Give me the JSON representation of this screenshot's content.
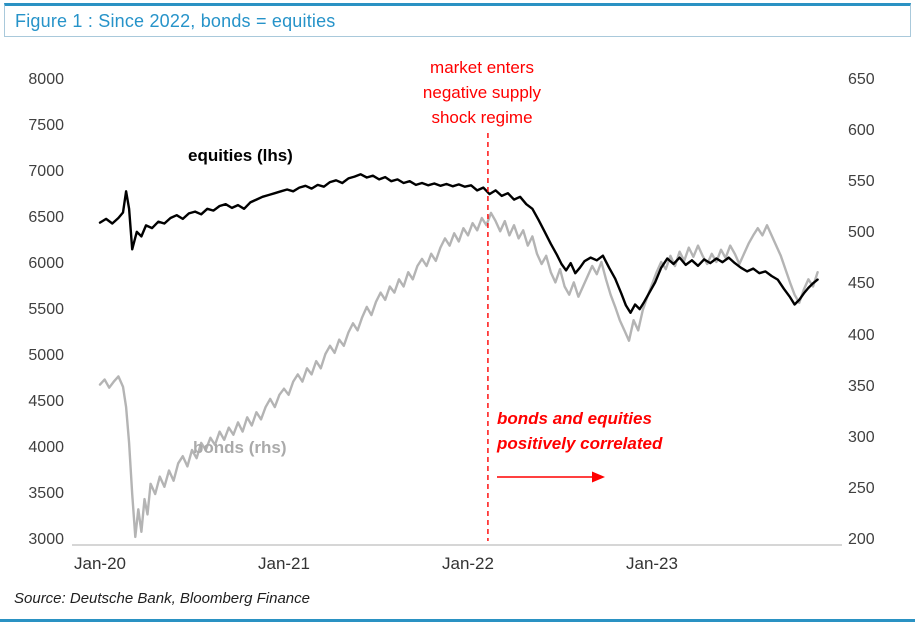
{
  "figure": {
    "title": "Figure 1 : Since 2022, bonds = equities",
    "source": "Source: Deutsche Bank, Bloomberg Finance"
  },
  "annotations": {
    "supply_shock": "market enters\nnegative supply\nshock regime",
    "correlation": "bonds and equities\npositively correlated",
    "equities_label": "equities (lhs)",
    "bonds_label": "bonds (rhs)"
  },
  "colors": {
    "title_blue": "#2693C9",
    "rule_blue": "#2A92C3",
    "box_border": "#A9C9DB",
    "equities_line": "#000000",
    "bonds_line": "#B4B4B4",
    "annotation_red": "#FF0000",
    "axis_text": "#404040",
    "baseline_gray": "#C9C9C9"
  },
  "chart_data": {
    "type": "line",
    "title": "Figure 1 : Since 2022, bonds = equities",
    "x_unit": "months since Jan-2020",
    "x_ticks": [
      {
        "t": 0,
        "label": "Jan-20"
      },
      {
        "t": 12,
        "label": "Jan-21"
      },
      {
        "t": 24,
        "label": "Jan-22"
      },
      {
        "t": 36,
        "label": "Jan-23"
      }
    ],
    "left_axis": {
      "name": "equities (lhs)",
      "min": 3000,
      "max": 8000,
      "ticks": [
        8000,
        7500,
        7000,
        6500,
        6000,
        5500,
        5000,
        4500,
        4000,
        3500,
        3000
      ]
    },
    "right_axis": {
      "name": "bonds (rhs)",
      "min": 200,
      "max": 650,
      "ticks": [
        650,
        600,
        550,
        500,
        450,
        400,
        350,
        300,
        250,
        200
      ]
    },
    "event_line": {
      "t": 25.3,
      "color": "#FF0000",
      "style": "dashed",
      "label": "market enters negative supply shock regime"
    },
    "legend_position": "inline-labels",
    "grid": false,
    "series": [
      {
        "id": "bonds",
        "name": "bonds (rhs)",
        "axis": "right",
        "color": "#B4B4B4",
        "points": [
          [
            0,
            352
          ],
          [
            0.3,
            357
          ],
          [
            0.6,
            349
          ],
          [
            0.9,
            355
          ],
          [
            1.2,
            360
          ],
          [
            1.5,
            350
          ],
          [
            1.7,
            330
          ],
          [
            1.9,
            295
          ],
          [
            2.1,
            245
          ],
          [
            2.3,
            203
          ],
          [
            2.5,
            230
          ],
          [
            2.7,
            208
          ],
          [
            2.9,
            240
          ],
          [
            3.1,
            225
          ],
          [
            3.3,
            255
          ],
          [
            3.6,
            245
          ],
          [
            3.9,
            262
          ],
          [
            4.2,
            252
          ],
          [
            4.5,
            268
          ],
          [
            4.8,
            258
          ],
          [
            5.1,
            275
          ],
          [
            5.4,
            282
          ],
          [
            5.7,
            272
          ],
          [
            6,
            288
          ],
          [
            6.3,
            280
          ],
          [
            6.6,
            295
          ],
          [
            6.9,
            288
          ],
          [
            7.2,
            300
          ],
          [
            7.5,
            293
          ],
          [
            7.8,
            306
          ],
          [
            8.1,
            298
          ],
          [
            8.4,
            310
          ],
          [
            8.7,
            303
          ],
          [
            9,
            315
          ],
          [
            9.3,
            306
          ],
          [
            9.6,
            320
          ],
          [
            9.9,
            312
          ],
          [
            10.2,
            325
          ],
          [
            10.5,
            318
          ],
          [
            10.8,
            330
          ],
          [
            11.1,
            338
          ],
          [
            11.4,
            330
          ],
          [
            11.7,
            342
          ],
          [
            12,
            348
          ],
          [
            12.3,
            342
          ],
          [
            12.6,
            355
          ],
          [
            12.9,
            362
          ],
          [
            13.2,
            355
          ],
          [
            13.5,
            368
          ],
          [
            13.8,
            362
          ],
          [
            14.1,
            375
          ],
          [
            14.4,
            368
          ],
          [
            14.7,
            382
          ],
          [
            15,
            390
          ],
          [
            15.3,
            383
          ],
          [
            15.6,
            396
          ],
          [
            15.9,
            390
          ],
          [
            16.2,
            403
          ],
          [
            16.5,
            412
          ],
          [
            16.8,
            405
          ],
          [
            17.1,
            418
          ],
          [
            17.4,
            428
          ],
          [
            17.7,
            420
          ],
          [
            18,
            433
          ],
          [
            18.3,
            442
          ],
          [
            18.6,
            435
          ],
          [
            18.9,
            448
          ],
          [
            19.2,
            442
          ],
          [
            19.5,
            455
          ],
          [
            19.8,
            448
          ],
          [
            20.1,
            462
          ],
          [
            20.4,
            455
          ],
          [
            20.7,
            468
          ],
          [
            21,
            475
          ],
          [
            21.3,
            468
          ],
          [
            21.6,
            480
          ],
          [
            21.9,
            473
          ],
          [
            22.2,
            486
          ],
          [
            22.5,
            495
          ],
          [
            22.8,
            488
          ],
          [
            23.1,
            500
          ],
          [
            23.4,
            492
          ],
          [
            23.7,
            505
          ],
          [
            24,
            498
          ],
          [
            24.3,
            510
          ],
          [
            24.6,
            503
          ],
          [
            24.9,
            515
          ],
          [
            25.2,
            508
          ],
          [
            25.5,
            520
          ],
          [
            25.8,
            512
          ],
          [
            26.1,
            502
          ],
          [
            26.4,
            512
          ],
          [
            26.7,
            498
          ],
          [
            27,
            508
          ],
          [
            27.3,
            495
          ],
          [
            27.6,
            503
          ],
          [
            27.9,
            488
          ],
          [
            28.2,
            497
          ],
          [
            28.5,
            480
          ],
          [
            28.8,
            470
          ],
          [
            29.1,
            478
          ],
          [
            29.4,
            462
          ],
          [
            29.7,
            452
          ],
          [
            30,
            465
          ],
          [
            30.3,
            448
          ],
          [
            30.6,
            440
          ],
          [
            30.9,
            452
          ],
          [
            31.2,
            438
          ],
          [
            31.5,
            448
          ],
          [
            31.8,
            458
          ],
          [
            32.1,
            468
          ],
          [
            32.4,
            460
          ],
          [
            32.7,
            472
          ],
          [
            33,
            455
          ],
          [
            33.3,
            440
          ],
          [
            33.6,
            428
          ],
          [
            33.9,
            415
          ],
          [
            34.2,
            405
          ],
          [
            34.5,
            395
          ],
          [
            34.8,
            415
          ],
          [
            35.1,
            405
          ],
          [
            35.4,
            425
          ],
          [
            35.7,
            438
          ],
          [
            36,
            450
          ],
          [
            36.3,
            462
          ],
          [
            36.6,
            472
          ],
          [
            36.9,
            465
          ],
          [
            37.2,
            478
          ],
          [
            37.5,
            468
          ],
          [
            37.8,
            482
          ],
          [
            38.1,
            473
          ],
          [
            38.4,
            486
          ],
          [
            38.7,
            477
          ],
          [
            39,
            488
          ],
          [
            39.3,
            478
          ],
          [
            39.6,
            470
          ],
          [
            39.9,
            480
          ],
          [
            40.2,
            472
          ],
          [
            40.5,
            484
          ],
          [
            40.8,
            476
          ],
          [
            41.1,
            488
          ],
          [
            41.4,
            480
          ],
          [
            41.7,
            470
          ],
          [
            42,
            480
          ],
          [
            42.3,
            490
          ],
          [
            42.6,
            498
          ],
          [
            42.9,
            505
          ],
          [
            43.2,
            498
          ],
          [
            43.5,
            508
          ],
          [
            43.8,
            498
          ],
          [
            44.1,
            488
          ],
          [
            44.4,
            478
          ],
          [
            44.7,
            465
          ],
          [
            45,
            452
          ],
          [
            45.3,
            440
          ],
          [
            45.6,
            432
          ],
          [
            45.9,
            445
          ],
          [
            46.2,
            455
          ],
          [
            46.5,
            448
          ],
          [
            46.8,
            462
          ]
        ]
      },
      {
        "id": "equities",
        "name": "equities (lhs)",
        "axis": "left",
        "color": "#000000",
        "points": [
          [
            0,
            6450
          ],
          [
            0.4,
            6490
          ],
          [
            0.8,
            6440
          ],
          [
            1.2,
            6500
          ],
          [
            1.5,
            6560
          ],
          [
            1.7,
            6790
          ],
          [
            1.9,
            6600
          ],
          [
            2.1,
            6160
          ],
          [
            2.4,
            6350
          ],
          [
            2.7,
            6300
          ],
          [
            3,
            6420
          ],
          [
            3.4,
            6390
          ],
          [
            3.8,
            6460
          ],
          [
            4.2,
            6440
          ],
          [
            4.6,
            6500
          ],
          [
            5,
            6530
          ],
          [
            5.4,
            6490
          ],
          [
            5.8,
            6550
          ],
          [
            6.2,
            6570
          ],
          [
            6.6,
            6540
          ],
          [
            7,
            6600
          ],
          [
            7.4,
            6580
          ],
          [
            7.8,
            6630
          ],
          [
            8.2,
            6650
          ],
          [
            8.6,
            6610
          ],
          [
            9,
            6640
          ],
          [
            9.4,
            6600
          ],
          [
            9.8,
            6670
          ],
          [
            10.2,
            6700
          ],
          [
            10.6,
            6730
          ],
          [
            11,
            6750
          ],
          [
            11.4,
            6770
          ],
          [
            11.8,
            6790
          ],
          [
            12.2,
            6810
          ],
          [
            12.6,
            6790
          ],
          [
            13,
            6830
          ],
          [
            13.4,
            6850
          ],
          [
            13.8,
            6820
          ],
          [
            14.2,
            6860
          ],
          [
            14.6,
            6840
          ],
          [
            15,
            6890
          ],
          [
            15.4,
            6910
          ],
          [
            15.8,
            6880
          ],
          [
            16.2,
            6930
          ],
          [
            16.6,
            6950
          ],
          [
            17,
            6975
          ],
          [
            17.4,
            6940
          ],
          [
            17.8,
            6960
          ],
          [
            18.2,
            6920
          ],
          [
            18.6,
            6945
          ],
          [
            19,
            6900
          ],
          [
            19.4,
            6920
          ],
          [
            19.8,
            6880
          ],
          [
            20.2,
            6900
          ],
          [
            20.6,
            6860
          ],
          [
            21,
            6880
          ],
          [
            21.4,
            6855
          ],
          [
            21.8,
            6875
          ],
          [
            22.2,
            6850
          ],
          [
            22.6,
            6870
          ],
          [
            23,
            6845
          ],
          [
            23.4,
            6865
          ],
          [
            23.8,
            6840
          ],
          [
            24.2,
            6855
          ],
          [
            24.6,
            6800
          ],
          [
            25,
            6830
          ],
          [
            25.4,
            6760
          ],
          [
            25.8,
            6800
          ],
          [
            26.2,
            6740
          ],
          [
            26.6,
            6770
          ],
          [
            27,
            6700
          ],
          [
            27.4,
            6730
          ],
          [
            27.8,
            6650
          ],
          [
            28.2,
            6600
          ],
          [
            28.6,
            6480
          ],
          [
            29,
            6350
          ],
          [
            29.4,
            6220
          ],
          [
            29.8,
            6100
          ],
          [
            30.1,
            6000
          ],
          [
            30.4,
            5930
          ],
          [
            30.7,
            6010
          ],
          [
            31,
            5900
          ],
          [
            31.3,
            5960
          ],
          [
            31.6,
            6030
          ],
          [
            32,
            6070
          ],
          [
            32.4,
            6040
          ],
          [
            32.8,
            6090
          ],
          [
            33.2,
            5960
          ],
          [
            33.6,
            5840
          ],
          [
            34,
            5680
          ],
          [
            34.3,
            5550
          ],
          [
            34.6,
            5470
          ],
          [
            34.9,
            5560
          ],
          [
            35.2,
            5510
          ],
          [
            35.5,
            5590
          ],
          [
            35.8,
            5680
          ],
          [
            36.2,
            5800
          ],
          [
            36.6,
            5960
          ],
          [
            37,
            6060
          ],
          [
            37.4,
            6000
          ],
          [
            37.8,
            6070
          ],
          [
            38.2,
            5990
          ],
          [
            38.6,
            6040
          ],
          [
            39,
            5980
          ],
          [
            39.4,
            6050
          ],
          [
            39.8,
            6010
          ],
          [
            40.2,
            6060
          ],
          [
            40.6,
            6020
          ],
          [
            41,
            6070
          ],
          [
            41.4,
            6010
          ],
          [
            41.8,
            5960
          ],
          [
            42.2,
            5920
          ],
          [
            42.6,
            5950
          ],
          [
            43,
            5900
          ],
          [
            43.4,
            5920
          ],
          [
            43.8,
            5870
          ],
          [
            44.2,
            5830
          ],
          [
            44.6,
            5730
          ],
          [
            45,
            5640
          ],
          [
            45.3,
            5560
          ],
          [
            45.6,
            5610
          ],
          [
            45.9,
            5680
          ],
          [
            46.2,
            5740
          ],
          [
            46.5,
            5790
          ],
          [
            46.8,
            5830
          ]
        ]
      }
    ]
  }
}
